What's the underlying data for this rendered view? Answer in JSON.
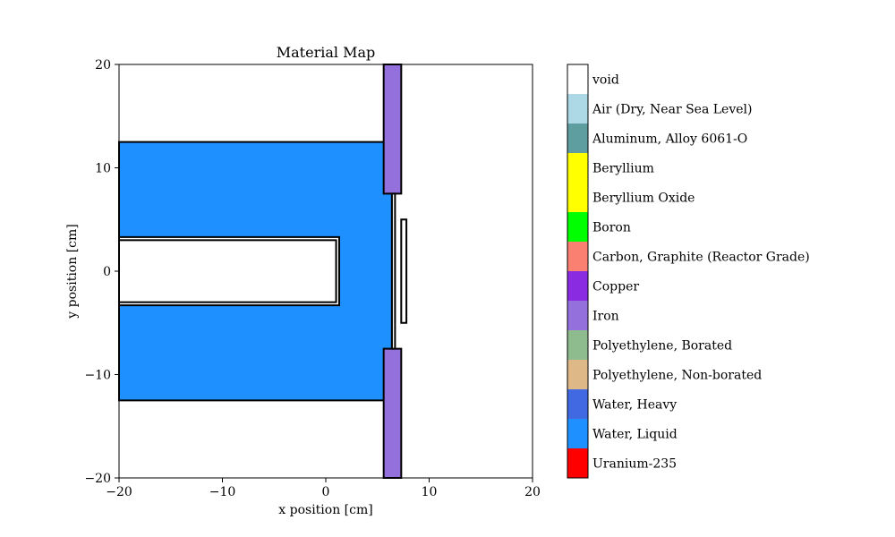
{
  "chart_data": {
    "type": "heatmap",
    "title": "Material Map",
    "xlabel": "x position [cm]",
    "ylabel": "y position [cm]",
    "xlim": [
      -20,
      20
    ],
    "ylim": [
      -20,
      20
    ],
    "xticks": [
      -20,
      -10,
      0,
      10,
      20
    ],
    "yticks": [
      -20,
      -10,
      0,
      10,
      20
    ],
    "xtick_labels": [
      "−20",
      "−10",
      "0",
      "10",
      "20"
    ],
    "ytick_labels": [
      "−20",
      "−10",
      "0",
      "10",
      "20"
    ],
    "grid": false,
    "legend_placement": "right colorbar",
    "legend": [
      {
        "label": "void",
        "color": "#ffffff"
      },
      {
        "label": "Air (Dry, Near Sea Level)",
        "color": "#add8e6"
      },
      {
        "label": "Aluminum, Alloy 6061-O",
        "color": "#5f9ea0"
      },
      {
        "label": "Beryllium",
        "color": "#ffff00"
      },
      {
        "label": "Beryllium Oxide",
        "color": "#ffff00"
      },
      {
        "label": "Boron",
        "color": "#00ff00"
      },
      {
        "label": "Carbon, Graphite (Reactor Grade)",
        "color": "#fa8072"
      },
      {
        "label": "Copper",
        "color": "#8a2be2"
      },
      {
        "label": "Iron",
        "color": "#9370db"
      },
      {
        "label": "Polyethylene, Borated",
        "color": "#8fbc8f"
      },
      {
        "label": "Polyethylene, Non-borated",
        "color": "#deb887"
      },
      {
        "label": "Water, Heavy",
        "color": "#4169e1"
      },
      {
        "label": "Water, Liquid",
        "color": "#1e90ff"
      },
      {
        "label": "Uranium-235",
        "color": "#ff0000"
      }
    ],
    "regions": [
      {
        "name": "moderator-tank",
        "material": "Water, Liquid",
        "x": [
          -20,
          6.4
        ],
        "y": [
          -12.5,
          12.5
        ]
      },
      {
        "name": "iron-shield-upper",
        "material": "Iron",
        "x": [
          5.6,
          7.3
        ],
        "y": [
          7.5,
          20
        ]
      },
      {
        "name": "iron-shield-lower",
        "material": "Iron",
        "x": [
          5.6,
          7.3
        ],
        "y": [
          -20,
          -7.5
        ]
      },
      {
        "name": "beam-channel-outer",
        "material": "void",
        "x": [
          -20,
          1.3
        ],
        "y": [
          -3.3,
          3.3
        ]
      },
      {
        "name": "beam-channel-inner",
        "material": "void",
        "x": [
          -20,
          1.0
        ],
        "y": [
          -3.0,
          3.0
        ]
      },
      {
        "name": "window-gap",
        "material": "void",
        "x": [
          6.4,
          6.7
        ],
        "y": [
          -7.5,
          7.5
        ]
      },
      {
        "name": "sample-slab",
        "material": "void",
        "x": [
          7.3,
          7.8
        ],
        "y": [
          -5,
          5
        ]
      }
    ]
  }
}
